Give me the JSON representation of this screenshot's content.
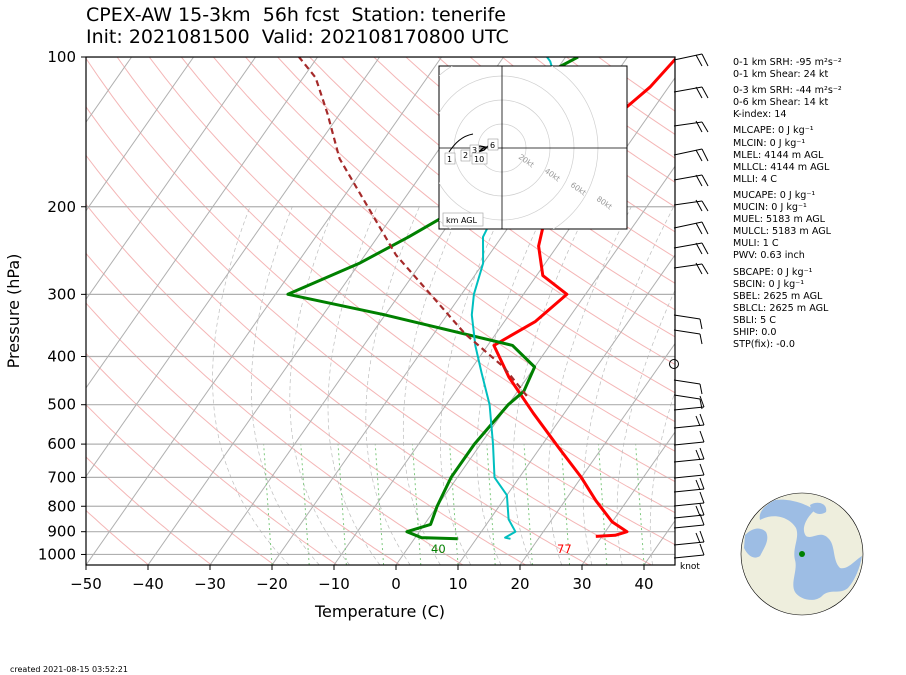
{
  "title_line1": "CPEX-AW 15-3km  56h fcst  Station: tenerife",
  "title_line2": "Init: 2021081500  Valid: 202108170800 UTC",
  "created": "created 2021-08-15 03:52:21",
  "stats": [
    "0-1 km SRH: -95 m²s⁻²",
    "0-1 km Shear: 24 kt",
    "0-3 km SRH: -44 m²s⁻²",
    "0-6 km Shear: 14 kt",
    "K-index: 14",
    "MLCAPE: 0 J kg⁻¹",
    "MLCIN: 0 J kg⁻¹",
    "MLEL: 4144 m AGL",
    "MLLCL: 4144 m AGL",
    "MLLI: 4 C",
    "MUCAPE: 0 J kg⁻¹",
    "MUCIN: 0 J kg⁻¹",
    "MUEL: 5183 m AGL",
    "MULCL: 5183 m AGL",
    "MULI: 1 C",
    "PWV: 0.63 inch",
    "SBCAPE: 0 J kg⁻¹",
    "SBCIN: 0 J kg⁻¹",
    "SBEL: 2625 m AGL",
    "SBLCL: 2625 m AGL",
    "SBLI: 5 C",
    "SHIP: 0.0",
    "STP(fix): -0.0"
  ],
  "colors": {
    "temperature": "#ff0000",
    "dewpoint": "#008000",
    "wetbulb": "#00bfbf",
    "parcel": "#a52a2a",
    "isobar": "#b0b0b0",
    "dry_adiabat": "#f4b6b6",
    "mixing_ratio": "#7fc97f"
  },
  "chart_data": {
    "type": "line",
    "subtype": "skew-T log-P",
    "xlabel": "Temperature (C)",
    "ylabel": "Pressure (hPa)",
    "xlim": [
      -50,
      45
    ],
    "ylim": [
      1050,
      100
    ],
    "xticks": [
      -50,
      -40,
      -30,
      -20,
      -10,
      0,
      10,
      20,
      30,
      40
    ],
    "xtick_labels": [
      "−50",
      "−40",
      "−30",
      "−20",
      "−10",
      "0",
      "10",
      "20",
      "30",
      "40"
    ],
    "yticks": [
      100,
      200,
      300,
      400,
      500,
      600,
      700,
      800,
      900,
      1000
    ],
    "y_log_scale": true,
    "surface_temperature_label": "77",
    "surface_dewpoint_label": "40",
    "wind_units_label": "knot",
    "hodograph": {
      "box_label": "km AGL",
      "ring_labels": [
        "20kt",
        "40kt",
        "60kt",
        "80kt"
      ],
      "height_labels": [
        "1",
        "2",
        "3",
        "6",
        "10"
      ]
    },
    "series": [
      {
        "name": "Temperature",
        "x": [
          29,
          32,
          33.5,
          30,
          25,
          20,
          13,
          5,
          -3,
          -9,
          -5,
          -3,
          -9,
          -13,
          -16,
          -19,
          -17,
          -15,
          -13,
          -12,
          -11,
          -10,
          -8,
          -6
        ],
        "y": [
          920,
          915,
          900,
          860,
          780,
          700,
          610,
          520,
          440,
          380,
          340,
          300,
          275,
          240,
          200,
          170,
          150,
          130,
          115,
          100,
          100,
          100,
          100,
          100
        ]
      },
      {
        "name": "Dewpoint",
        "x": [
          7,
          1,
          -2,
          1,
          0,
          -1,
          -1,
          0,
          1,
          0,
          -6,
          -30,
          -48,
          -40,
          -35,
          -30,
          -30,
          -32,
          -35,
          -36,
          -34,
          -32,
          -30,
          -28
        ],
        "y": [
          930,
          925,
          900,
          870,
          800,
          700,
          600,
          500,
          470,
          420,
          380,
          330,
          300,
          260,
          230,
          200,
          180,
          160,
          150,
          130,
          120,
          110,
          105,
          100
        ]
      },
      {
        "name": "Wet-bulb",
        "x": [
          15.5,
          14.5,
          15.5,
          13,
          10,
          6,
          2,
          -3,
          -8,
          -12,
          -16,
          -18,
          -20,
          -23,
          -24,
          -25,
          -26,
          -27,
          -28,
          -29,
          -30,
          -31,
          -32,
          -33
        ],
        "y": [
          930,
          925,
          900,
          850,
          760,
          700,
          600,
          500,
          430,
          380,
          330,
          300,
          260,
          230,
          200,
          180,
          160,
          150,
          130,
          120,
          110,
          105,
          102,
          100
        ]
      },
      {
        "name": "Parcel",
        "x": [
          2,
          -5,
          -15,
          -25,
          -35,
          -45,
          -55,
          -62,
          -68,
          -73
        ],
        "y": [
          480,
          420,
          360,
          300,
          250,
          200,
          160,
          130,
          110,
          100
        ]
      }
    ]
  }
}
